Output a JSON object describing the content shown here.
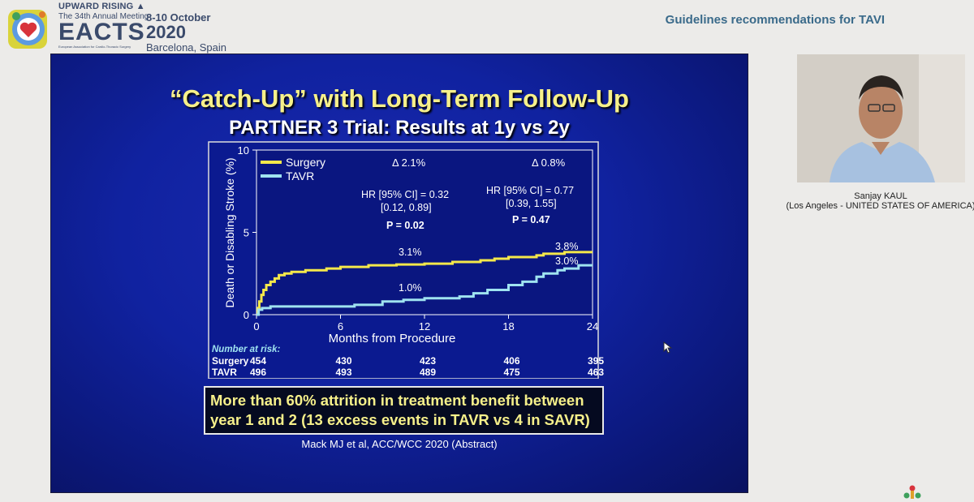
{
  "header": {
    "tagline": "UPWARD RISING ▲",
    "meeting": "The 34th Annual Meeting",
    "org": "EACTS",
    "org_full": "European Association for Cardio-Thoracic Surgery",
    "dates": "8-10 October",
    "year": "2020",
    "city": "Barcelona, Spain",
    "session_title": "Guidelines recommendations for TAVI"
  },
  "slide": {
    "title": "“Catch-Up” with Long-Term Follow-Up",
    "subtitle": "PARTNER 3 Trial: Results at 1y vs 2y",
    "callout": "More than 60% attrition in treatment benefit between year 1 and 2 (13 excess events in TAVR vs 4 in SAVR)",
    "citation": "Mack MJ et al, ACC/WCC 2020 (Abstract)"
  },
  "speaker": {
    "name": "Sanjay KAUL",
    "location": "(Los Angeles - UNITED STATES OF AMERICA)"
  },
  "chart_data": {
    "type": "line",
    "xlabel": "Months from Procedure",
    "ylabel": "Death or Disabling Stroke (%)",
    "xlim": [
      0,
      24
    ],
    "ylim": [
      0,
      10
    ],
    "xticks": [
      0,
      6,
      12,
      18,
      24
    ],
    "yticks": [
      0,
      5,
      10
    ],
    "legend_position": "top-left",
    "colors": {
      "Surgery": "#f4e84a",
      "TAVR": "#9fe3f0",
      "axis": "#ffffff",
      "plot_bg": "#0a1a8a"
    },
    "series": [
      {
        "name": "Surgery",
        "step": true,
        "points": [
          [
            0,
            0
          ],
          [
            0.1,
            0.4
          ],
          [
            0.2,
            0.8
          ],
          [
            0.35,
            1.2
          ],
          [
            0.5,
            1.5
          ],
          [
            0.7,
            1.8
          ],
          [
            1.0,
            2.0
          ],
          [
            1.3,
            2.2
          ],
          [
            1.6,
            2.4
          ],
          [
            2.0,
            2.5
          ],
          [
            2.5,
            2.6
          ],
          [
            3.5,
            2.7
          ],
          [
            5.0,
            2.8
          ],
          [
            6.0,
            2.9
          ],
          [
            8.0,
            3.0
          ],
          [
            10.0,
            3.05
          ],
          [
            12.0,
            3.1
          ],
          [
            14.0,
            3.2
          ],
          [
            16.0,
            3.3
          ],
          [
            17.0,
            3.4
          ],
          [
            18.0,
            3.5
          ],
          [
            20.0,
            3.6
          ],
          [
            20.5,
            3.7
          ],
          [
            22.0,
            3.8
          ],
          [
            24.0,
            3.8
          ]
        ]
      },
      {
        "name": "TAVR",
        "step": true,
        "points": [
          [
            0,
            0
          ],
          [
            0.15,
            0.3
          ],
          [
            0.4,
            0.4
          ],
          [
            1.0,
            0.5
          ],
          [
            3.0,
            0.5
          ],
          [
            6.0,
            0.5
          ],
          [
            7.0,
            0.6
          ],
          [
            9.0,
            0.8
          ],
          [
            10.5,
            0.9
          ],
          [
            12.0,
            1.0
          ],
          [
            14.5,
            1.1
          ],
          [
            15.5,
            1.3
          ],
          [
            16.5,
            1.5
          ],
          [
            18.0,
            1.8
          ],
          [
            19.0,
            2.0
          ],
          [
            20.0,
            2.3
          ],
          [
            20.5,
            2.5
          ],
          [
            21.5,
            2.7
          ],
          [
            22.0,
            2.8
          ],
          [
            23.0,
            3.0
          ],
          [
            24.0,
            3.0
          ]
        ]
      }
    ],
    "annotations": {
      "delta_1y": "Δ 2.1%",
      "delta_2y": "Δ 0.8%",
      "hr_1y_line1": "HR [95% CI] = 0.32",
      "hr_1y_line2": "[0.12, 0.89]",
      "p_1y": "P = 0.02",
      "hr_2y_line1": "HR [95% CI] = 0.77",
      "hr_2y_line2": "[0.39, 1.55]",
      "p_2y": "P = 0.47",
      "surgery_1y": "3.1%",
      "tavr_1y": "1.0%",
      "surgery_2y": "3.8%",
      "tavr_2y": "3.0%"
    },
    "risk_table": {
      "title": "Number at risk:",
      "timepoints": [
        0,
        6,
        12,
        18,
        24
      ],
      "rows": [
        {
          "label": "Surgery",
          "values": [
            454,
            430,
            423,
            406,
            395
          ]
        },
        {
          "label": "TAVR",
          "values": [
            496,
            493,
            489,
            475,
            463
          ]
        }
      ]
    }
  }
}
